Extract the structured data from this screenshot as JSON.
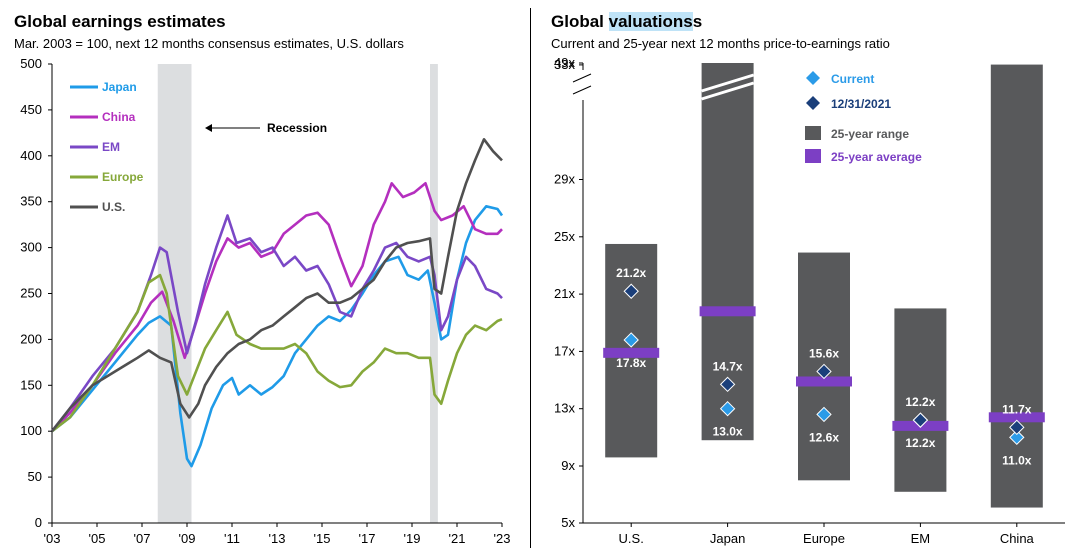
{
  "left": {
    "title": "Global earnings estimates",
    "subtitle": "Mar. 2003 = 100, next 12 months consensus estimates, U.S. dollars",
    "recession_label": "Recession"
  },
  "right": {
    "title_prefix": "Global ",
    "title_highlight": "valuations",
    "title_suffix": "s",
    "subtitle": "Current and 25-year next 12 months price-to-earnings ratio",
    "legend": {
      "current": "Current",
      "prior": "12/31/2021",
      "range": "25-year range",
      "average": "25-year average"
    }
  },
  "colors": {
    "japan": "#1f9be8",
    "china": "#b42fbe",
    "em": "#7a48c6",
    "europe": "#86a83a",
    "us": "#505050",
    "range_bar": "#58595b",
    "average": "#7c3fc4",
    "current": "#2b9be8",
    "prior": "#1b3f7a",
    "recession": "#dcdee0"
  },
  "chart_data": [
    {
      "type": "line",
      "title": "Global earnings estimates",
      "subtitle": "Mar. 2003 = 100, next 12 months consensus estimates, U.S. dollars",
      "ylim": [
        0,
        500
      ],
      "yticks": [
        "0",
        "50",
        "100",
        "150",
        "200",
        "250",
        "300",
        "350",
        "400",
        "450",
        "500"
      ],
      "xlim": [
        2003.2,
        2023.2
      ],
      "xticks": [
        {
          "x": 2003.2,
          "label": "'03"
        },
        {
          "x": 2005.2,
          "label": "'05"
        },
        {
          "x": 2007.2,
          "label": "'07"
        },
        {
          "x": 2009.2,
          "label": "'09"
        },
        {
          "x": 2011.2,
          "label": "'11"
        },
        {
          "x": 2013.2,
          "label": "'13"
        },
        {
          "x": 2015.2,
          "label": "'15"
        },
        {
          "x": 2017.2,
          "label": "'17"
        },
        {
          "x": 2019.2,
          "label": "'19"
        },
        {
          "x": 2021.2,
          "label": "'21"
        },
        {
          "x": 2023.2,
          "label": "'23"
        }
      ],
      "recessions": [
        [
          2007.9,
          2009.4
        ],
        [
          2020.0,
          2020.35
        ]
      ],
      "legend_position": "top-left",
      "series": [
        {
          "name": "Japan",
          "key": "japan",
          "points": [
            [
              2003.2,
              100
            ],
            [
              2004,
              115
            ],
            [
              2005,
              145
            ],
            [
              2006,
              175
            ],
            [
              2007,
              205
            ],
            [
              2007.5,
              218
            ],
            [
              2008,
              225
            ],
            [
              2008.5,
              215
            ],
            [
              2008.9,
              120
            ],
            [
              2009.2,
              70
            ],
            [
              2009.4,
              62
            ],
            [
              2009.8,
              85
            ],
            [
              2010.3,
              125
            ],
            [
              2010.8,
              150
            ],
            [
              2011.2,
              158
            ],
            [
              2011.5,
              140
            ],
            [
              2012,
              150
            ],
            [
              2012.5,
              140
            ],
            [
              2013,
              148
            ],
            [
              2013.5,
              160
            ],
            [
              2014,
              185
            ],
            [
              2014.5,
              200
            ],
            [
              2015,
              215
            ],
            [
              2015.5,
              225
            ],
            [
              2016,
              220
            ],
            [
              2016.5,
              232
            ],
            [
              2017,
              250
            ],
            [
              2017.5,
              270
            ],
            [
              2018,
              285
            ],
            [
              2018.6,
              290
            ],
            [
              2019,
              270
            ],
            [
              2019.5,
              265
            ],
            [
              2019.9,
              275
            ],
            [
              2020.2,
              240
            ],
            [
              2020.5,
              200
            ],
            [
              2020.8,
              205
            ],
            [
              2021.2,
              265
            ],
            [
              2021.6,
              305
            ],
            [
              2022,
              330
            ],
            [
              2022.5,
              345
            ],
            [
              2023,
              342
            ],
            [
              2023.2,
              335
            ]
          ]
        },
        {
          "name": "China",
          "key": "china",
          "points": [
            [
              2003.2,
              100
            ],
            [
              2004,
              120
            ],
            [
              2005,
              150
            ],
            [
              2006,
              185
            ],
            [
              2007,
              215
            ],
            [
              2007.6,
              240
            ],
            [
              2008.1,
              252
            ],
            [
              2008.6,
              220
            ],
            [
              2009.1,
              180
            ],
            [
              2009.5,
              210
            ],
            [
              2010,
              250
            ],
            [
              2010.5,
              285
            ],
            [
              2011,
              310
            ],
            [
              2011.5,
              300
            ],
            [
              2012,
              305
            ],
            [
              2012.5,
              290
            ],
            [
              2013,
              295
            ],
            [
              2013.5,
              315
            ],
            [
              2014,
              325
            ],
            [
              2014.5,
              335
            ],
            [
              2015,
              338
            ],
            [
              2015.5,
              325
            ],
            [
              2016,
              290
            ],
            [
              2016.5,
              258
            ],
            [
              2017,
              280
            ],
            [
              2017.5,
              325
            ],
            [
              2018,
              350
            ],
            [
              2018.3,
              370
            ],
            [
              2018.8,
              355
            ],
            [
              2019.3,
              360
            ],
            [
              2019.8,
              370
            ],
            [
              2020.2,
              340
            ],
            [
              2020.5,
              330
            ],
            [
              2021,
              335
            ],
            [
              2021.5,
              345
            ],
            [
              2022,
              320
            ],
            [
              2022.5,
              315
            ],
            [
              2023,
              315
            ],
            [
              2023.2,
              320
            ]
          ]
        },
        {
          "name": "EM",
          "key": "em",
          "points": [
            [
              2003.2,
              100
            ],
            [
              2004,
              125
            ],
            [
              2005,
              160
            ],
            [
              2006,
              190
            ],
            [
              2007,
              230
            ],
            [
              2007.6,
              270
            ],
            [
              2008,
              300
            ],
            [
              2008.3,
              295
            ],
            [
              2008.8,
              230
            ],
            [
              2009.2,
              185
            ],
            [
              2009.6,
              220
            ],
            [
              2010,
              260
            ],
            [
              2010.5,
              300
            ],
            [
              2011,
              335
            ],
            [
              2011.4,
              305
            ],
            [
              2012,
              310
            ],
            [
              2012.5,
              295
            ],
            [
              2013,
              300
            ],
            [
              2013.5,
              280
            ],
            [
              2014,
              290
            ],
            [
              2014.5,
              275
            ],
            [
              2015,
              280
            ],
            [
              2015.5,
              260
            ],
            [
              2016,
              230
            ],
            [
              2016.5,
              225
            ],
            [
              2017,
              255
            ],
            [
              2017.5,
              275
            ],
            [
              2018,
              300
            ],
            [
              2018.5,
              305
            ],
            [
              2019,
              290
            ],
            [
              2019.5,
              285
            ],
            [
              2020,
              290
            ],
            [
              2020.2,
              270
            ],
            [
              2020.5,
              210
            ],
            [
              2020.8,
              225
            ],
            [
              2021.2,
              265
            ],
            [
              2021.6,
              290
            ],
            [
              2022,
              280
            ],
            [
              2022.5,
              255
            ],
            [
              2023,
              250
            ],
            [
              2023.2,
              245
            ]
          ]
        },
        {
          "name": "Europe",
          "key": "europe",
          "points": [
            [
              2003.2,
              100
            ],
            [
              2004,
              115
            ],
            [
              2005,
              150
            ],
            [
              2006,
              190
            ],
            [
              2007,
              230
            ],
            [
              2007.5,
              262
            ],
            [
              2008,
              270
            ],
            [
              2008.3,
              250
            ],
            [
              2008.8,
              160
            ],
            [
              2009.2,
              140
            ],
            [
              2009.6,
              165
            ],
            [
              2010,
              190
            ],
            [
              2010.5,
              210
            ],
            [
              2011,
              230
            ],
            [
              2011.4,
              205
            ],
            [
              2012,
              195
            ],
            [
              2012.5,
              190
            ],
            [
              2013,
              190
            ],
            [
              2013.5,
              190
            ],
            [
              2014,
              195
            ],
            [
              2014.5,
              185
            ],
            [
              2015,
              165
            ],
            [
              2015.5,
              155
            ],
            [
              2016,
              148
            ],
            [
              2016.5,
              150
            ],
            [
              2017,
              165
            ],
            [
              2017.5,
              175
            ],
            [
              2018,
              190
            ],
            [
              2018.5,
              185
            ],
            [
              2019,
              185
            ],
            [
              2019.5,
              180
            ],
            [
              2020,
              180
            ],
            [
              2020.2,
              140
            ],
            [
              2020.5,
              130
            ],
            [
              2020.8,
              155
            ],
            [
              2021.2,
              185
            ],
            [
              2021.6,
              205
            ],
            [
              2022,
              215
            ],
            [
              2022.5,
              210
            ],
            [
              2023,
              220
            ],
            [
              2023.2,
              222
            ]
          ]
        },
        {
          "name": "U.S.",
          "key": "us",
          "points": [
            [
              2003.2,
              100
            ],
            [
              2004,
              125
            ],
            [
              2005,
              150
            ],
            [
              2006,
              165
            ],
            [
              2007,
              180
            ],
            [
              2007.5,
              188
            ],
            [
              2008,
              180
            ],
            [
              2008.5,
              175
            ],
            [
              2008.9,
              130
            ],
            [
              2009.3,
              115
            ],
            [
              2009.7,
              130
            ],
            [
              2010,
              150
            ],
            [
              2010.5,
              170
            ],
            [
              2011,
              185
            ],
            [
              2011.5,
              195
            ],
            [
              2012,
              200
            ],
            [
              2012.5,
              210
            ],
            [
              2013,
              215
            ],
            [
              2013.5,
              225
            ],
            [
              2014,
              235
            ],
            [
              2014.5,
              245
            ],
            [
              2015,
              250
            ],
            [
              2015.5,
              240
            ],
            [
              2016,
              240
            ],
            [
              2016.5,
              245
            ],
            [
              2017,
              255
            ],
            [
              2017.5,
              265
            ],
            [
              2018,
              285
            ],
            [
              2018.5,
              300
            ],
            [
              2019,
              305
            ],
            [
              2019.5,
              307
            ],
            [
              2020,
              310
            ],
            [
              2020.2,
              255
            ],
            [
              2020.5,
              250
            ],
            [
              2020.8,
              290
            ],
            [
              2021.2,
              340
            ],
            [
              2021.6,
              370
            ],
            [
              2022,
              395
            ],
            [
              2022.4,
              418
            ],
            [
              2022.8,
              405
            ],
            [
              2023,
              400
            ],
            [
              2023.2,
              395
            ]
          ]
        }
      ]
    },
    {
      "type": "bar",
      "title": "Global valuations",
      "subtitle": "Current and 25-year next 12 months price-to-earnings ratio",
      "categories": [
        "U.S.",
        "Japan",
        "Europe",
        "EM",
        "China"
      ],
      "yticks": [
        "5x",
        "9x",
        "13x",
        "17x",
        "21x",
        "25x",
        "29x",
        "33x",
        "49x"
      ],
      "y_axis_break": {
        "below": 33,
        "above": 49
      },
      "range_low": [
        9.6,
        10.8,
        8.0,
        7.2,
        6.1
      ],
      "range_high": [
        24.5,
        49,
        23.9,
        20.0,
        35.7
      ],
      "average": [
        16.9,
        19.8,
        14.9,
        11.8,
        12.4
      ],
      "current": [
        17.8,
        13.0,
        12.6,
        12.2,
        11.0
      ],
      "prior_12_31_2021": [
        21.2,
        14.7,
        15.6,
        12.2,
        11.7
      ],
      "current_labels": [
        "17.8x",
        "13.0x",
        "12.6x",
        "12.2x",
        "11.0x"
      ],
      "prior_labels": [
        "21.2x",
        "14.7x",
        "15.6x",
        "12.2x",
        "11.7x"
      ],
      "legend_position": "top-right"
    }
  ]
}
